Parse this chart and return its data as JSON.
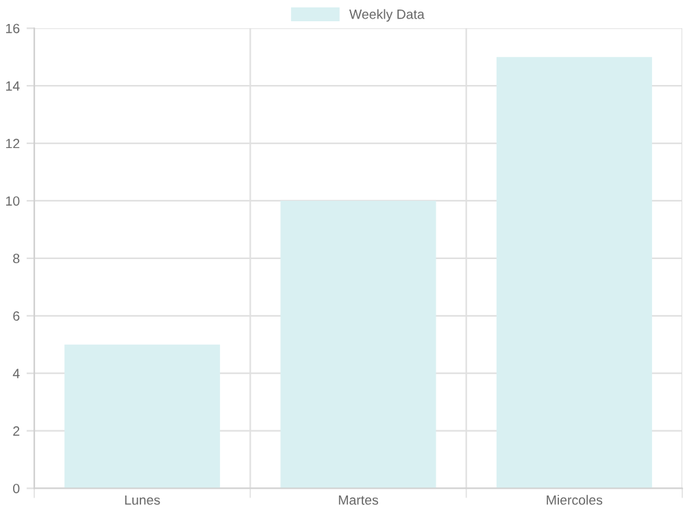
{
  "chart_data": {
    "type": "bar",
    "categories": [
      "Lunes",
      "Martes",
      "Miercoles"
    ],
    "series": [
      {
        "name": "Weekly Data",
        "color": "#d9f0f2",
        "values": [
          5,
          10,
          15
        ]
      }
    ],
    "ylim": [
      0,
      16
    ],
    "yticks": [
      0,
      2,
      4,
      6,
      8,
      10,
      12,
      14,
      16
    ],
    "grid": true,
    "legend": "top"
  }
}
